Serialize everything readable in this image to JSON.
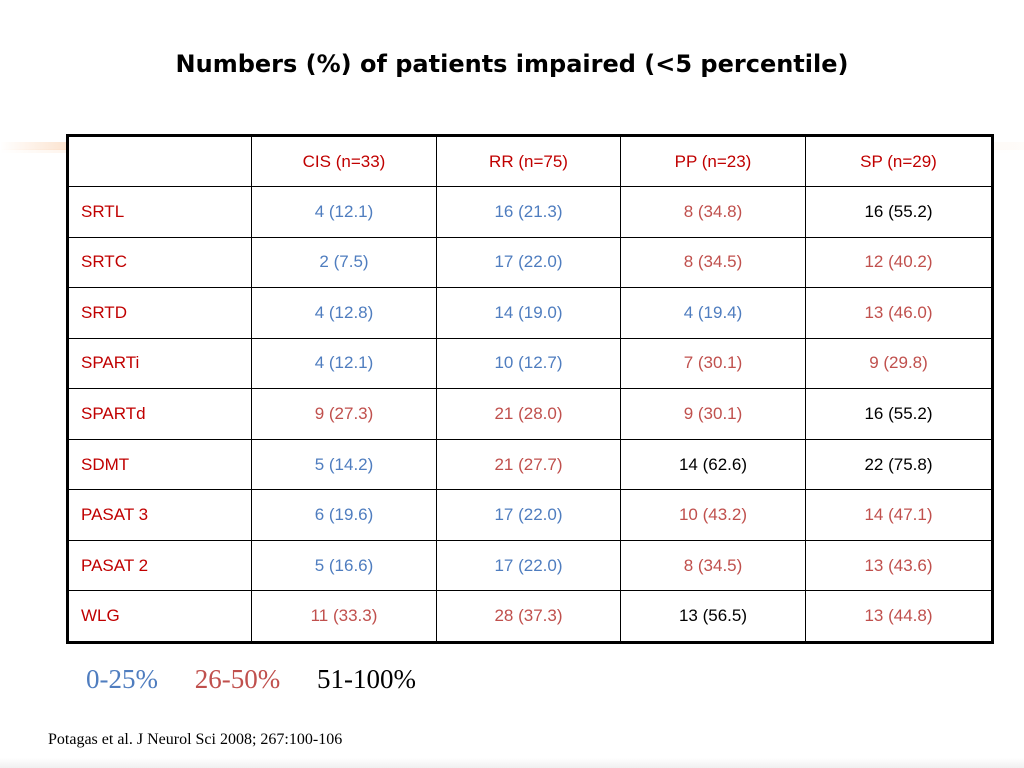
{
  "title": "Numbers (%) of patients impaired (<5 percentile)",
  "table": {
    "columns": [
      "",
      "CIS (n=33)",
      "RR (n=75)",
      "PP (n=23)",
      "SP (n=29)"
    ],
    "rows": [
      {
        "label": "SRTL",
        "cells": [
          {
            "value": "4 (12.1)",
            "color": "#4f7dbf"
          },
          {
            "value": "16 (21.3)",
            "color": "#4f7dbf"
          },
          {
            "value": "8 (34.8)",
            "color": "#c0504d"
          },
          {
            "value": "16 (55.2)",
            "color": "#000000"
          }
        ]
      },
      {
        "label": "SRTC",
        "cells": [
          {
            "value": "2 (7.5)",
            "color": "#4f7dbf"
          },
          {
            "value": "17 (22.0)",
            "color": "#4f7dbf"
          },
          {
            "value": "8 (34.5)",
            "color": "#c0504d"
          },
          {
            "value": "12 (40.2)",
            "color": "#c0504d"
          }
        ]
      },
      {
        "label": "SRTD",
        "cells": [
          {
            "value": "4 (12.8)",
            "color": "#4f7dbf"
          },
          {
            "value": "14 (19.0)",
            "color": "#4f7dbf"
          },
          {
            "value": "4 (19.4)",
            "color": "#4f7dbf"
          },
          {
            "value": "13 (46.0)",
            "color": "#c0504d"
          }
        ]
      },
      {
        "label": "SPARTi",
        "cells": [
          {
            "value": "4 (12.1)",
            "color": "#4f7dbf"
          },
          {
            "value": "10 (12.7)",
            "color": "#4f7dbf"
          },
          {
            "value": "7 (30.1)",
            "color": "#c0504d"
          },
          {
            "value": "9 (29.8)",
            "color": "#c0504d"
          }
        ]
      },
      {
        "label": "SPARTd",
        "cells": [
          {
            "value": "9 (27.3)",
            "color": "#c0504d"
          },
          {
            "value": "21 (28.0)",
            "color": "#c0504d"
          },
          {
            "value": "9 (30.1)",
            "color": "#c0504d"
          },
          {
            "value": "16 (55.2)",
            "color": "#000000"
          }
        ]
      },
      {
        "label": "SDMT",
        "cells": [
          {
            "value": "5 (14.2)",
            "color": "#4f7dbf"
          },
          {
            "value": "21 (27.7)",
            "color": "#c0504d"
          },
          {
            "value": "14 (62.6)",
            "color": "#000000"
          },
          {
            "value": "22 (75.8)",
            "color": "#000000"
          }
        ]
      },
      {
        "label": "PASAT 3",
        "cells": [
          {
            "value": "6 (19.6)",
            "color": "#4f7dbf"
          },
          {
            "value": "17 (22.0)",
            "color": "#4f7dbf"
          },
          {
            "value": "10 (43.2)",
            "color": "#c0504d"
          },
          {
            "value": "14 (47.1)",
            "color": "#c0504d"
          }
        ]
      },
      {
        "label": "PASAT 2",
        "cells": [
          {
            "value": "5 (16.6)",
            "color": "#4f7dbf"
          },
          {
            "value": "17 (22.0)",
            "color": "#4f7dbf"
          },
          {
            "value": "8 (34.5)",
            "color": "#c0504d"
          },
          {
            "value": "13 (43.6)",
            "color": "#c0504d"
          }
        ]
      },
      {
        "label": "WLG",
        "cells": [
          {
            "value": "11 (33.3)",
            "color": "#c0504d"
          },
          {
            "value": "28 (37.3)",
            "color": "#c0504d"
          },
          {
            "value": "13 (56.5)",
            "color": "#000000"
          },
          {
            "value": "13 (44.8)",
            "color": "#c0504d"
          }
        ]
      }
    ],
    "header_color": "#c00000",
    "row_label_color": "#c00000"
  },
  "legend": [
    {
      "label": "0-25%",
      "color": "#4f7dbf"
    },
    {
      "label": "26-50%",
      "color": "#c0504d"
    },
    {
      "label": "51-100%",
      "color": "#000000"
    }
  ],
  "citation": "Potagas et al. J Neurol Sci 2008; 267:100-106"
}
